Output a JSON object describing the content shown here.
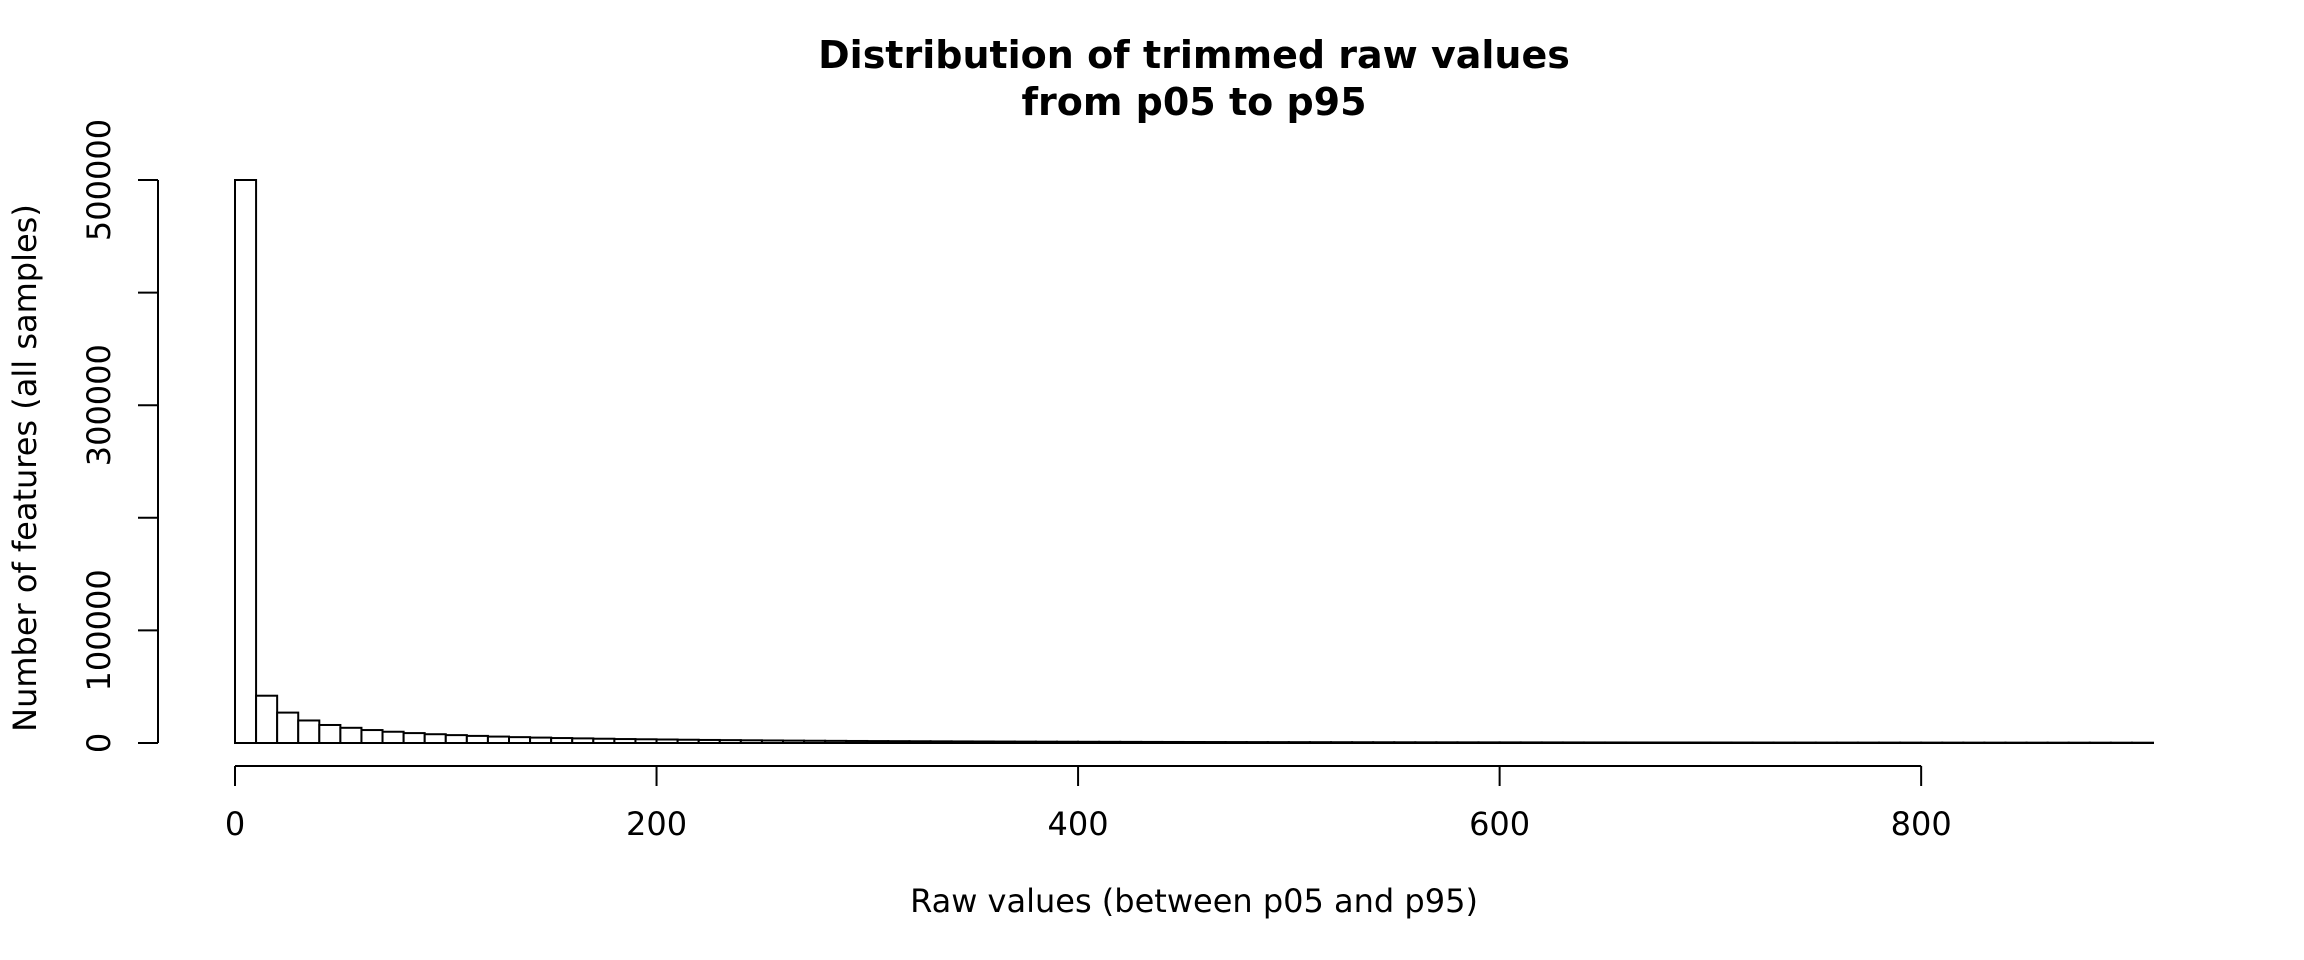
{
  "chart_data": {
    "type": "bar",
    "title": "Distribution of trimmed raw values",
    "subtitle": "from p05 to p95",
    "xlabel": "Raw values (between p05 and p95)",
    "ylabel": "Number of features (all samples)",
    "xlim": [
      0,
      910
    ],
    "ylim": [
      0,
      500000
    ],
    "x_ticks": [
      0,
      200,
      400,
      600,
      800
    ],
    "y_ticks": [
      0,
      100000,
      200000,
      300000,
      400000,
      500000
    ],
    "y_tick_labels": [
      "0",
      "100000",
      "",
      "300000",
      "",
      "500000"
    ],
    "bin_width": 10,
    "bin_start": 0,
    "values": [
      500000,
      42000,
      27000,
      20000,
      16000,
      13500,
      11500,
      10000,
      8800,
      7800,
      7000,
      6300,
      5700,
      5200,
      4800,
      4400,
      4100,
      3800,
      3500,
      3300,
      3100,
      2900,
      2700,
      2550,
      2400,
      2250,
      2120,
      2000,
      1900,
      1800,
      1700,
      1620,
      1540,
      1470,
      1400,
      1340,
      1280,
      1220,
      1170,
      1120,
      1070,
      1030,
      990,
      950,
      910,
      880,
      850,
      820,
      790,
      760,
      735,
      710,
      690,
      665,
      645,
      625,
      605,
      590,
      570,
      555,
      540,
      525,
      510,
      495,
      480,
      470,
      455,
      445,
      435,
      425,
      415,
      405,
      395,
      385,
      375,
      365,
      358,
      350,
      342,
      335,
      328,
      320,
      313,
      306,
      300,
      294,
      288,
      282,
      276,
      270,
      265
    ],
    "grid": false,
    "colors": {
      "bar_fill": "#ffffff",
      "bar_stroke": "#000000"
    }
  }
}
